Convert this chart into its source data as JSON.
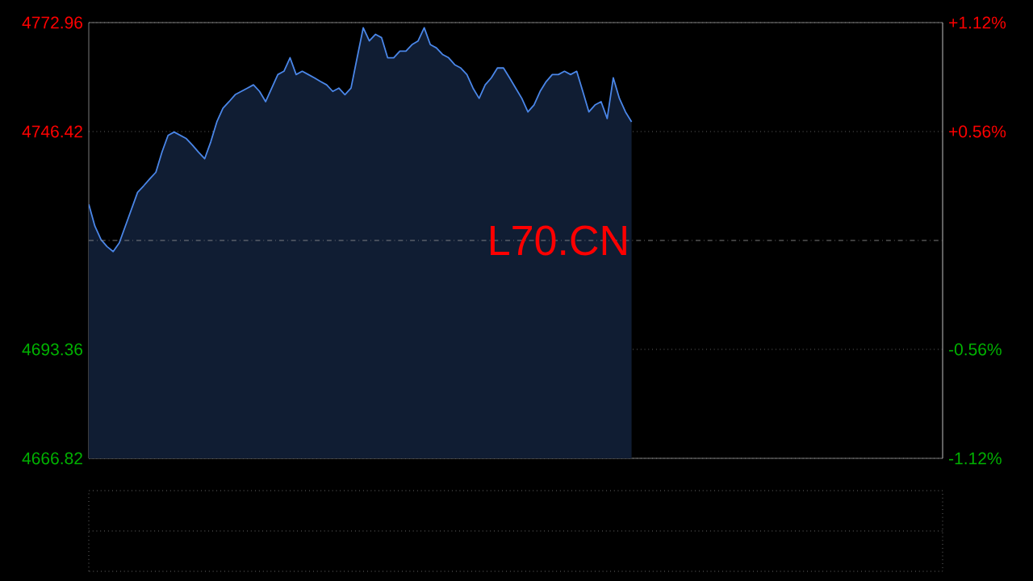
{
  "chart_data": {
    "type": "area",
    "annotations": [
      "L70.CN"
    ],
    "categories": [
      null,
      null,
      null,
      null,
      null,
      null,
      null,
      null,
      null,
      null,
      null,
      null,
      null,
      null,
      null,
      null,
      null,
      null,
      null,
      null,
      null,
      null,
      null,
      null,
      null,
      null,
      null,
      null,
      null,
      null,
      null,
      null,
      null,
      null,
      null,
      null,
      null,
      null,
      null,
      null,
      null,
      null,
      null,
      null,
      null,
      null,
      null,
      null,
      null,
      null,
      null,
      null,
      null,
      null,
      null,
      null,
      null,
      null,
      null,
      null,
      null,
      null,
      null,
      null,
      null,
      null,
      null,
      null,
      null,
      null,
      null,
      null,
      null,
      null,
      null,
      null,
      null,
      null,
      null,
      null,
      null,
      null,
      null,
      null,
      null,
      null,
      null,
      null,
      null,
      null,
      null,
      null,
      null,
      null,
      null,
      null,
      null,
      null,
      null,
      null,
      null,
      null,
      null,
      null,
      null,
      null,
      null,
      null,
      null,
      null,
      null,
      null,
      null,
      null,
      null,
      null,
      null,
      null,
      null,
      null,
      null,
      null,
      null,
      null,
      null,
      null,
      null,
      null,
      null,
      null,
      null,
      null,
      null,
      null,
      null,
      null,
      null,
      null,
      null,
      null,
      null
    ],
    "series": [
      {
        "color": "#4a86e8",
        "values": [
          4728.7,
          4723.4,
          4720.1,
          4718.4,
          4717.2,
          4719.3,
          4723.4,
          4727.5,
          4731.6,
          4733.2,
          4734.9,
          4736.5,
          4741.4,
          4745.5,
          4746.3,
          4745.5,
          4744.7,
          4743.1,
          4741.4,
          4739.8,
          4743.9,
          4748.8,
          4752.1,
          4753.7,
          4755.4,
          4756.2,
          4757.0,
          4757.8,
          4756.2,
          4753.7,
          4757.0,
          4760.3,
          4761.1,
          4764.4,
          4760.3,
          4761.1,
          4760.3,
          4759.5,
          4758.6,
          4757.8,
          4756.2,
          4757.0,
          4755.4,
          4757.0,
          4764.4,
          4771.7,
          4768.5,
          4770.1,
          4769.3,
          4764.4,
          4764.4,
          4766.0,
          4766.0,
          4767.6,
          4768.5,
          4771.7,
          4767.6,
          4766.8,
          4765.2,
          4764.4,
          4762.7,
          4761.9,
          4760.3,
          4757.0,
          4754.5,
          4757.8,
          4759.5,
          4761.9,
          4761.9,
          4759.5,
          4757.0,
          4754.5,
          4751.2,
          4752.9,
          4756.2,
          4758.6,
          4760.3,
          4760.3,
          4761.1,
          4760.3,
          4761.1,
          4756.2,
          4751.2,
          4752.9,
          4753.7,
          4749.6,
          4759.5,
          4754.5,
          4751.2,
          4748.8,
          null,
          null,
          null,
          null,
          null,
          null,
          null,
          null,
          null,
          null,
          null,
          null,
          null,
          null,
          null,
          null,
          null,
          null,
          null,
          null,
          null,
          null,
          null,
          null,
          null,
          null,
          null,
          null,
          null,
          null,
          null,
          null,
          null,
          null,
          null,
          null,
          null,
          null,
          null,
          null,
          null,
          null,
          null,
          null,
          null,
          null,
          null,
          null,
          null,
          null,
          null
        ]
      }
    ],
    "ylim": [
      4666.82,
      4772.96
    ],
    "yticks": [
      4666.82,
      4693.36,
      4746.42,
      4772.96
    ],
    "y2lim": [
      -1.12,
      1.12
    ],
    "y2ticks": [
      {
        "value": -1.12,
        "label": "-1.12%"
      },
      {
        "value": -0.56,
        "label": "-0.56%"
      },
      {
        "value": 0.56,
        "label": "+0.56%"
      },
      {
        "value": 1.12,
        "label": "+1.12%"
      }
    ],
    "ref_lines": [
      {
        "axis": "y",
        "value": 4719.89,
        "line_style": "dashed"
      }
    ],
    "grid": "y"
  }
}
